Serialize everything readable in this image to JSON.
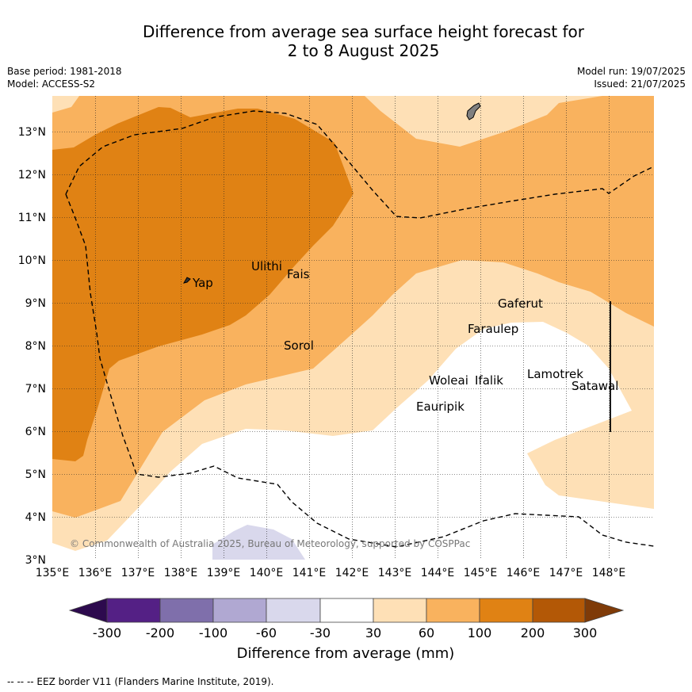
{
  "header": {
    "title_line1": "Difference from average sea surface height forecast for",
    "title_line2": "2 to 8 August 2025",
    "base_period": "Base period: 1981-2018",
    "model": "Model: ACCESS-S2",
    "model_run": "Model run: 19/07/2025",
    "issued": "Issued: 21/07/2025"
  },
  "map": {
    "lon_labels": [
      "135°E",
      "136°E",
      "137°E",
      "138°E",
      "139°E",
      "140°E",
      "141°E",
      "142°E",
      "143°E",
      "144°E",
      "145°E",
      "146°E",
      "147°E",
      "148°E"
    ],
    "lat_labels": [
      "3°N",
      "4°N",
      "5°N",
      "6°N",
      "7°N",
      "8°N",
      "9°N",
      "10°N",
      "11°N",
      "12°N",
      "13°N"
    ],
    "places": [
      {
        "name": "Yap"
      },
      {
        "name": "Ulithi"
      },
      {
        "name": "Fais"
      },
      {
        "name": "Sorol"
      },
      {
        "name": "Gaferut"
      },
      {
        "name": "Faraulep"
      },
      {
        "name": "Woleai"
      },
      {
        "name": "Ifalik"
      },
      {
        "name": "Lamotrek"
      },
      {
        "name": "Satawal"
      },
      {
        "name": "Eauripik"
      }
    ],
    "copyright": "© Commonwealth of Australia 2025, Bureau of Meteorology, supported by COSPPac"
  },
  "colorbar": {
    "labels": [
      "-300",
      "-200",
      "-100",
      "-60",
      "-30",
      "30",
      "60",
      "100",
      "200",
      "300"
    ],
    "colors": [
      "#2d0a4e",
      "#542085",
      "#7f6fab",
      "#b0a8d2",
      "#d9d8ec",
      "#ffffff",
      "#fee0b6",
      "#f9b25e",
      "#e08214",
      "#b35806",
      "#7f3b08"
    ],
    "title": "Difference from average (mm)"
  },
  "footer": {
    "eez_note": "--  --  -- EEZ border V11 (Flanders Marine Institute, 2019)."
  }
}
